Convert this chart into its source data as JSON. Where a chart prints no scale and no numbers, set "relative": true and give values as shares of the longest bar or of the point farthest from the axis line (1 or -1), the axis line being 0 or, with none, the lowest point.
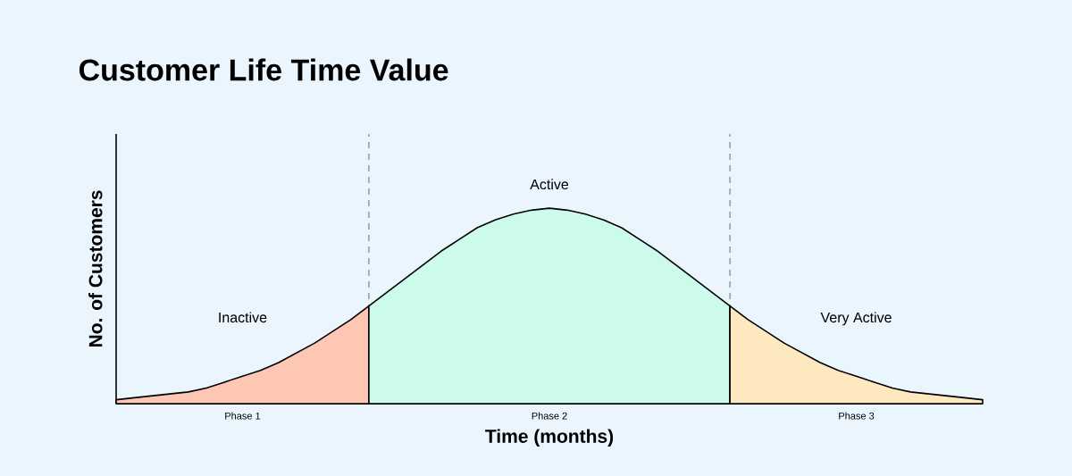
{
  "chart_data": {
    "type": "area",
    "title": "Customer Life Time Value",
    "xlabel": "Time (months)",
    "ylabel": "No. of Customers",
    "relative": true,
    "categories": [
      null,
      null,
      null,
      null,
      null,
      null,
      null,
      "Phase 1",
      null,
      null,
      null,
      null,
      null,
      null,
      null,
      null,
      null,
      null,
      null,
      null,
      null,
      null,
      null,
      null,
      "Phase 2",
      null,
      null,
      null,
      null,
      null,
      null,
      null,
      null,
      null,
      null,
      null,
      null,
      null,
      null,
      null,
      null,
      "Phase 3",
      null,
      null,
      null,
      null,
      null,
      null,
      null
    ],
    "series": [
      {
        "name": "Inactive",
        "color": "#fdc7b4",
        "values": [
          0.02,
          0.03,
          0.04,
          0.05,
          0.06,
          0.08,
          0.11,
          0.14,
          0.17,
          0.21,
          0.26,
          0.31,
          0.37,
          0.43,
          0.5,
          null,
          null,
          null,
          null,
          null,
          null,
          null,
          null,
          null,
          null,
          null,
          null,
          null,
          null,
          null,
          null,
          null,
          null,
          null,
          null,
          null,
          null,
          null,
          null,
          null,
          null,
          null,
          null,
          null,
          null,
          null,
          null,
          null,
          null
        ]
      },
      {
        "name": "Active",
        "color": "#cdfbeb",
        "values": [
          null,
          null,
          null,
          null,
          null,
          null,
          null,
          null,
          null,
          null,
          null,
          null,
          null,
          null,
          0.5,
          0.57,
          0.64,
          0.71,
          0.78,
          0.84,
          0.9,
          0.94,
          0.97,
          0.99,
          1.0,
          0.99,
          0.97,
          0.94,
          0.9,
          0.84,
          0.78,
          0.71,
          0.64,
          0.57,
          0.5,
          null,
          null,
          null,
          null,
          null,
          null,
          null,
          null,
          null,
          null,
          null,
          null,
          null,
          null
        ]
      },
      {
        "name": "Very Active",
        "color": "#fde8c0",
        "values": [
          null,
          null,
          null,
          null,
          null,
          null,
          null,
          null,
          null,
          null,
          null,
          null,
          null,
          null,
          null,
          null,
          null,
          null,
          null,
          null,
          null,
          null,
          null,
          null,
          null,
          null,
          null,
          null,
          null,
          null,
          null,
          null,
          null,
          null,
          0.5,
          0.43,
          0.37,
          0.31,
          0.26,
          0.21,
          0.17,
          0.14,
          0.11,
          0.08,
          0.06,
          0.05,
          0.04,
          0.03,
          0.02
        ]
      }
    ]
  }
}
